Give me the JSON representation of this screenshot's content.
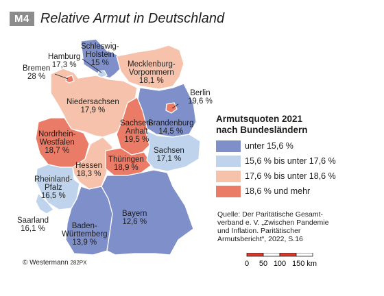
{
  "figure_label": "M4",
  "title": "Relative Armut in Deutschland",
  "legend": {
    "title_line1": "Armutsquoten 2021",
    "title_line2": "nach Bundesländern",
    "classes": [
      {
        "label": "unter 15,6 %",
        "color": "#7f8fc9"
      },
      {
        "label": "15,6 % bis unter 17,6 %",
        "color": "#bfd4ec"
      },
      {
        "label": "17,6 % bis unter 18,6 %",
        "color": "#f7c2ab"
      },
      {
        "label": "18,6 % und mehr",
        "color": "#ea7b67"
      }
    ]
  },
  "states": [
    {
      "name": "Schleswig-Holstein",
      "name_lines": [
        "Schleswig-",
        "Holstein"
      ],
      "value": "15 %",
      "class": 0
    },
    {
      "name": "Hamburg",
      "name_lines": [
        "Hamburg"
      ],
      "value": "17,3 %",
      "class": 1
    },
    {
      "name": "Bremen",
      "name_lines": [
        "Bremen"
      ],
      "value": "28 %",
      "class": 3
    },
    {
      "name": "Mecklenburg-Vorpommern",
      "name_lines": [
        "Mecklenburg-",
        "Vorpommern"
      ],
      "value": "18,1 %",
      "class": 2
    },
    {
      "name": "Berlin",
      "name_lines": [
        "Berlin"
      ],
      "value": "19,6 %",
      "class": 3
    },
    {
      "name": "Niedersachsen",
      "name_lines": [
        "Niedersachsen"
      ],
      "value": "17,9 %",
      "class": 2
    },
    {
      "name": "Brandenburg",
      "name_lines": [
        "Brandenburg"
      ],
      "value": "14,5 %",
      "class": 0
    },
    {
      "name": "Sachsen-Anhalt",
      "name_lines": [
        "Sachsen-",
        "Anhalt"
      ],
      "value": "19,5 %",
      "class": 3
    },
    {
      "name": "Nordrhein-Westfalen",
      "name_lines": [
        "Nordrhein-",
        "Westfalen"
      ],
      "value": "18,7 %",
      "class": 3
    },
    {
      "name": "Sachsen",
      "name_lines": [
        "Sachsen"
      ],
      "value": "17,1 %",
      "class": 1
    },
    {
      "name": "Thüringen",
      "name_lines": [
        "Thüringen"
      ],
      "value": "18,9 %",
      "class": 3
    },
    {
      "name": "Hessen",
      "name_lines": [
        "Hessen"
      ],
      "value": "18,3 %",
      "class": 2
    },
    {
      "name": "Rheinland-Pfalz",
      "name_lines": [
        "Rheinland-",
        "Pfalz"
      ],
      "value": "16,5 %",
      "class": 1
    },
    {
      "name": "Saarland",
      "name_lines": [
        "Saarland"
      ],
      "value": "16,1 %",
      "class": 1
    },
    {
      "name": "Bayern",
      "name_lines": [
        "Bayern"
      ],
      "value": "12,6 %",
      "class": 0
    },
    {
      "name": "Baden-Württemberg",
      "name_lines": [
        "Baden-",
        "Württemberg"
      ],
      "value": "13,9 %",
      "class": 0
    }
  ],
  "source": {
    "line1": "Quelle: Der Paritätische Gesamt-",
    "line2": "verband e. V. „Zwischen Pandemie",
    "line3": "und Inflation. Paritätischer",
    "line4": "Armutsbericht“, 2022, S.16"
  },
  "scale_bar": {
    "ticks": [
      "0",
      "50",
      "100",
      "150 km"
    ],
    "colors": [
      "#d9382d",
      "#ffffff"
    ]
  },
  "copyright": {
    "text": "© Westermann",
    "code": "282PX"
  }
}
